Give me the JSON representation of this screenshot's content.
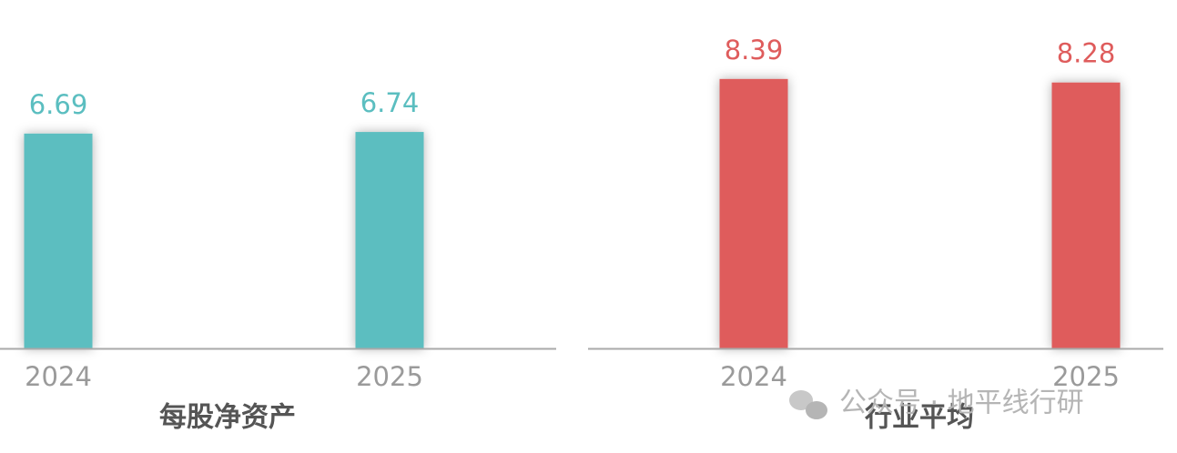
{
  "chart_data": [
    {
      "type": "bar",
      "title": "每股净资产",
      "categories": [
        "2024",
        "2025"
      ],
      "values": [
        6.69,
        6.74
      ],
      "color": "#5bbec0",
      "ylim": [
        0,
        10
      ]
    },
    {
      "type": "bar",
      "title": "行业平均",
      "categories": [
        "2024",
        "2025"
      ],
      "values": [
        8.39,
        8.28
      ],
      "color": "#df5c5c",
      "ylim": [
        0,
        10
      ]
    }
  ],
  "watermark": "公众号 · 地平线行研"
}
